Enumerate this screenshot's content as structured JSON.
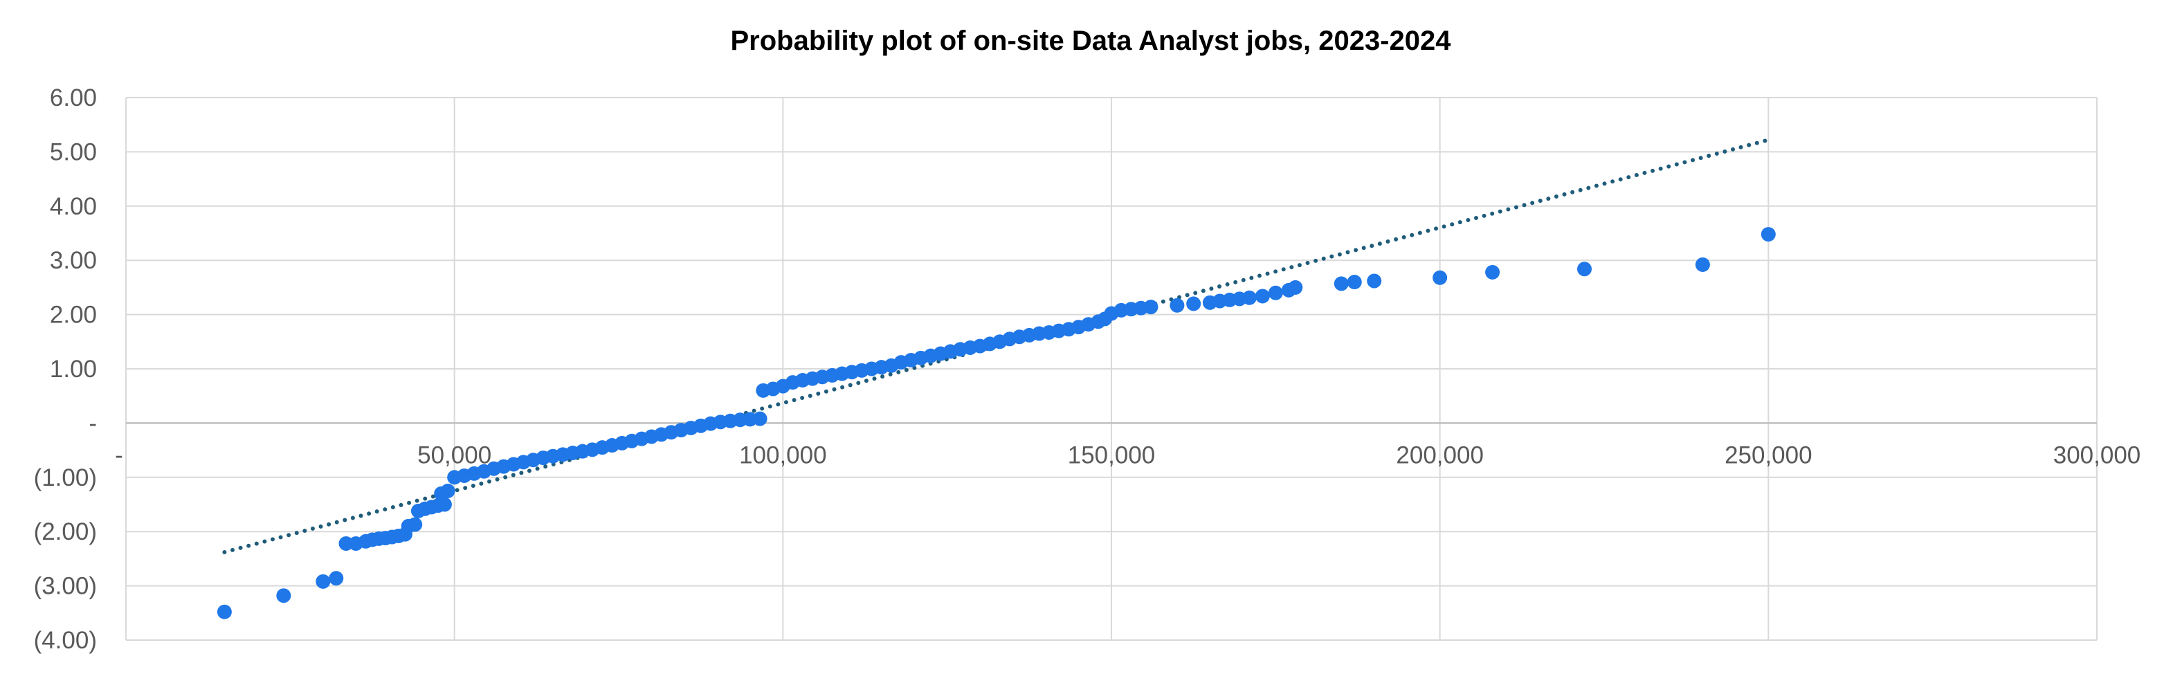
{
  "chart_data": {
    "type": "scatter",
    "title": "Probability plot of on-site Data Analyst jobs, 2023-2024",
    "xlabel": "",
    "ylabel": "",
    "xlim": [
      0,
      300000
    ],
    "ylim": [
      -4,
      6
    ],
    "x_ticks": [
      50000,
      100000,
      150000,
      200000,
      250000,
      300000
    ],
    "x_tick_labels": [
      "50,000",
      "100,000",
      "150,000",
      "200,000",
      "250,000",
      "300,000"
    ],
    "y_ticks": [
      6,
      5,
      4,
      3,
      2,
      1,
      0,
      -1,
      -2,
      -3,
      -4
    ],
    "y_tick_labels": [
      "6.00",
      "5.00",
      "4.00",
      "3.00",
      "2.00",
      "1.00",
      "-",
      "(1.00)",
      "(2.00)",
      "(3.00)",
      "(4.00)"
    ],
    "x_axis_origin_label": "-",
    "grid": true,
    "legend": "none",
    "colors": {
      "points": "#1f77e8",
      "trendline": "#1f5c7a",
      "grid": "#d9d9d9",
      "axis": "#bfbfbf"
    },
    "trendline": {
      "style": "dotted",
      "from": [
        15000,
        -2.38
      ],
      "to": [
        250000,
        5.22
      ]
    },
    "points": [
      [
        15000,
        -3.48
      ],
      [
        24000,
        -3.18
      ],
      [
        30000,
        -2.92
      ],
      [
        32000,
        -2.86
      ],
      [
        33500,
        -2.22
      ],
      [
        35000,
        -2.22
      ],
      [
        36500,
        -2.18
      ],
      [
        37500,
        -2.15
      ],
      [
        38500,
        -2.13
      ],
      [
        39500,
        -2.12
      ],
      [
        40500,
        -2.1
      ],
      [
        41500,
        -2.08
      ],
      [
        42500,
        -2.05
      ],
      [
        43000,
        -1.9
      ],
      [
        44000,
        -1.87
      ],
      [
        44500,
        -1.62
      ],
      [
        45500,
        -1.58
      ],
      [
        46500,
        -1.55
      ],
      [
        47500,
        -1.52
      ],
      [
        48500,
        -1.5
      ],
      [
        48000,
        -1.3
      ],
      [
        49000,
        -1.25
      ],
      [
        50000,
        -1.0
      ],
      [
        51500,
        -0.97
      ],
      [
        53000,
        -0.93
      ],
      [
        54500,
        -0.89
      ],
      [
        56000,
        -0.84
      ],
      [
        57500,
        -0.8
      ],
      [
        59000,
        -0.76
      ],
      [
        60500,
        -0.72
      ],
      [
        62000,
        -0.68
      ],
      [
        63500,
        -0.64
      ],
      [
        65000,
        -0.61
      ],
      [
        66500,
        -0.58
      ],
      [
        68000,
        -0.55
      ],
      [
        69500,
        -0.52
      ],
      [
        71000,
        -0.49
      ],
      [
        72500,
        -0.45
      ],
      [
        74000,
        -0.41
      ],
      [
        75500,
        -0.37
      ],
      [
        77000,
        -0.33
      ],
      [
        78500,
        -0.29
      ],
      [
        80000,
        -0.25
      ],
      [
        81500,
        -0.21
      ],
      [
        83000,
        -0.17
      ],
      [
        84500,
        -0.13
      ],
      [
        86000,
        -0.09
      ],
      [
        87500,
        -0.05
      ],
      [
        89000,
        -0.01
      ],
      [
        90500,
        0.02
      ],
      [
        92000,
        0.04
      ],
      [
        93500,
        0.06
      ],
      [
        95000,
        0.07
      ],
      [
        96500,
        0.08
      ],
      [
        97000,
        0.6
      ],
      [
        98500,
        0.63
      ],
      [
        100000,
        0.68
      ],
      [
        101500,
        0.75
      ],
      [
        103000,
        0.79
      ],
      [
        104500,
        0.82
      ],
      [
        106000,
        0.85
      ],
      [
        107500,
        0.88
      ],
      [
        109000,
        0.91
      ],
      [
        110500,
        0.94
      ],
      [
        112000,
        0.97
      ],
      [
        113500,
        1.0
      ],
      [
        115000,
        1.03
      ],
      [
        116500,
        1.06
      ],
      [
        118000,
        1.12
      ],
      [
        119500,
        1.16
      ],
      [
        121000,
        1.2
      ],
      [
        122500,
        1.24
      ],
      [
        124000,
        1.28
      ],
      [
        125500,
        1.32
      ],
      [
        127000,
        1.36
      ],
      [
        128500,
        1.39
      ],
      [
        130000,
        1.42
      ],
      [
        131500,
        1.46
      ],
      [
        133000,
        1.5
      ],
      [
        134500,
        1.55
      ],
      [
        136000,
        1.59
      ],
      [
        137500,
        1.62
      ],
      [
        139000,
        1.65
      ],
      [
        140500,
        1.67
      ],
      [
        142000,
        1.7
      ],
      [
        143500,
        1.73
      ],
      [
        145000,
        1.77
      ],
      [
        146500,
        1.82
      ],
      [
        148000,
        1.87
      ],
      [
        149000,
        1.92
      ],
      [
        150000,
        2.02
      ],
      [
        151500,
        2.08
      ],
      [
        153000,
        2.1
      ],
      [
        154500,
        2.12
      ],
      [
        156000,
        2.14
      ],
      [
        160000,
        2.17
      ],
      [
        162500,
        2.2
      ],
      [
        165000,
        2.22
      ],
      [
        166500,
        2.25
      ],
      [
        168000,
        2.27
      ],
      [
        169500,
        2.29
      ],
      [
        171000,
        2.31
      ],
      [
        173000,
        2.34
      ],
      [
        175000,
        2.4
      ],
      [
        177000,
        2.45
      ],
      [
        178000,
        2.5
      ],
      [
        185000,
        2.57
      ],
      [
        187000,
        2.6
      ],
      [
        190000,
        2.62
      ],
      [
        200000,
        2.68
      ],
      [
        208000,
        2.78
      ],
      [
        222000,
        2.84
      ],
      [
        240000,
        2.92
      ],
      [
        250000,
        3.48
      ]
    ]
  }
}
